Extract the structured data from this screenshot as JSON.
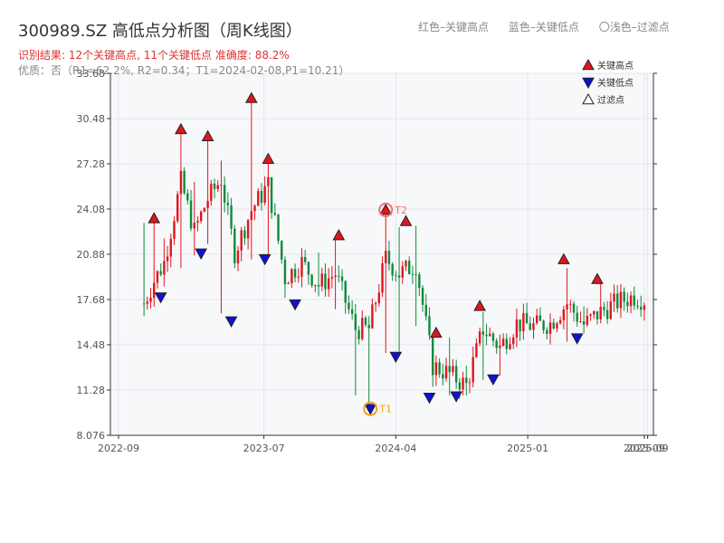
{
  "header": {
    "title": "300989.SZ 高低点分析图（周K线图）",
    "result_line": "识别结果: 12个关键高点, 11个关键低点  准确度: 88.2%",
    "quality_line": "优质：否（R1=62.2%, R2=0.34；T1=2024-02-08,P1=10.21）",
    "color_legend": [
      "红色–关键高点",
      "蓝色–关键低点",
      "〇浅色–过滤点"
    ]
  },
  "colors": {
    "up": "#e0161e",
    "down": "#0f8a3c",
    "high_marker": "#e0161e",
    "low_marker": "#1010d8",
    "filtered_marker": "#ffffff",
    "t1": "#f0a020",
    "t2": "#f07070",
    "plot_bg": "#f7f8fa",
    "grid": "#e4e6ec"
  },
  "chart_data": {
    "type": "candlestick",
    "title": "300989.SZ 高低点分析图（周K线图）",
    "xlabel": "",
    "ylabel": "",
    "x_range": [
      "2022-08-15",
      "2025-09-20"
    ],
    "ylim": [
      8.076,
      33.68
    ],
    "y_ticks": [
      8.076,
      11.28,
      14.48,
      17.68,
      20.88,
      24.08,
      27.28,
      30.48,
      33.68
    ],
    "y_tick_labels": [
      "8.076",
      "11.28",
      "14.48",
      "17.68",
      "20.88",
      "24.08",
      "27.28",
      "30.48",
      "33.68"
    ],
    "x_ticks": [
      "2022-09-01",
      "2023-07-01",
      "2024-04-01",
      "2025-01-01",
      "2025-09-01",
      "2025-09-08"
    ],
    "x_tick_labels": [
      "2022-09",
      "2023-07",
      "2024-04",
      "2025-01",
      "2025-09",
      "2025-09"
    ],
    "grid": true,
    "legend_position": "top-right",
    "legend": [
      {
        "label": "关键高点",
        "marker": "triangle-up",
        "color": "#e0161e"
      },
      {
        "label": "关键低点",
        "marker": "triangle-down",
        "color": "#1010d8"
      },
      {
        "label": "过滤点",
        "marker": "triangle-up",
        "color": "#ffffff"
      }
    ],
    "key_points": [
      {
        "date": "2022-10-24",
        "price": 17.4,
        "low": 16.5,
        "high": 23.1
      },
      {
        "date": "2022-11-14",
        "price": 19.0,
        "low": 17.9,
        "high": 23.3
      },
      {
        "date": "2022-12-05",
        "price": 20.3,
        "low": 18.6,
        "high": 22.0
      },
      {
        "date": "2023-01-09",
        "price": 26.0,
        "low": 19.9,
        "high": 29.4
      },
      {
        "date": "2023-02-06",
        "price": 22.5,
        "low": 20.8,
        "high": 26.0
      },
      {
        "date": "2023-03-06",
        "price": 24.8,
        "low": 21.6,
        "high": 28.9
      },
      {
        "date": "2023-04-03",
        "price": 26.2,
        "low": 16.7,
        "high": 27.5
      },
      {
        "date": "2023-05-01",
        "price": 21.0,
        "low": 19.9,
        "high": 22.5
      },
      {
        "date": "2023-06-05",
        "price": 24.0,
        "low": 20.5,
        "high": 31.6
      },
      {
        "date": "2023-07-10",
        "price": 25.8,
        "low": 20.6,
        "high": 27.3
      },
      {
        "date": "2023-08-14",
        "price": 19.2,
        "low": 17.8,
        "high": 20.0
      },
      {
        "date": "2023-09-18",
        "price": 20.3,
        "low": 18.9,
        "high": 21.3
      },
      {
        "date": "2023-10-23",
        "price": 18.7,
        "low": 17.9,
        "high": 21.0
      },
      {
        "date": "2023-11-27",
        "price": 19.5,
        "low": 17.0,
        "high": 22.1
      },
      {
        "date": "2024-01-08",
        "price": 15.6,
        "low": 10.9,
        "high": 17.0
      },
      {
        "date": "2024-02-05",
        "price": 15.6,
        "low": 10.2,
        "high": 16.5
      },
      {
        "date": "2024-03-11",
        "price": 20.6,
        "low": 13.9,
        "high": 23.7
      },
      {
        "date": "2024-04-08",
        "price": 19.5,
        "low": 14.0,
        "high": 22.8
      },
      {
        "date": "2024-05-13",
        "price": 20.2,
        "low": 15.8,
        "high": 22.9
      },
      {
        "date": "2024-06-17",
        "price": 13.0,
        "low": 11.5,
        "high": 14.0
      },
      {
        "date": "2024-07-22",
        "price": 12.4,
        "low": 10.9,
        "high": 15.0
      },
      {
        "date": "2024-08-26",
        "price": 11.6,
        "low": 10.9,
        "high": 13.0
      },
      {
        "date": "2024-09-30",
        "price": 15.6,
        "low": 12.0,
        "high": 16.8
      },
      {
        "date": "2024-11-04",
        "price": 14.3,
        "low": 12.3,
        "high": 15.2
      },
      {
        "date": "2024-12-09",
        "price": 16.0,
        "low": 15.0,
        "high": 16.8
      },
      {
        "date": "2025-01-13",
        "price": 15.8,
        "low": 14.9,
        "high": 16.4
      },
      {
        "date": "2025-02-17",
        "price": 16.0,
        "low": 15.3,
        "high": 16.7
      },
      {
        "date": "2025-03-24",
        "price": 17.4,
        "low": 14.7,
        "high": 19.9
      },
      {
        "date": "2025-04-28",
        "price": 15.9,
        "low": 15.3,
        "high": 17.2
      },
      {
        "date": "2025-06-02",
        "price": 16.8,
        "low": 16.0,
        "high": 18.8
      },
      {
        "date": "2025-07-07",
        "price": 17.5,
        "low": 17.0,
        "high": 18.7
      },
      {
        "date": "2025-08-11",
        "price": 17.9,
        "low": 17.0,
        "high": 18.6
      },
      {
        "date": "2025-09-08",
        "price": 17.6,
        "low": 17.2,
        "high": 18.4
      }
    ],
    "high_points": [
      {
        "date": "2022-11-14",
        "price": 23.1
      },
      {
        "date": "2023-01-09",
        "price": 29.4
      },
      {
        "date": "2023-03-06",
        "price": 28.9
      },
      {
        "date": "2023-06-05",
        "price": 31.6
      },
      {
        "date": "2023-07-10",
        "price": 27.3
      },
      {
        "date": "2023-12-04",
        "price": 21.9
      },
      {
        "date": "2024-03-11",
        "price": 23.7
      },
      {
        "date": "2024-04-22",
        "price": 22.9
      },
      {
        "date": "2024-06-24",
        "price": 15.0
      },
      {
        "date": "2024-09-23",
        "price": 16.9
      },
      {
        "date": "2025-03-17",
        "price": 20.2
      },
      {
        "date": "2025-05-26",
        "price": 18.8
      }
    ],
    "low_points": [
      {
        "date": "2022-11-28",
        "price": 18.1
      },
      {
        "date": "2023-02-20",
        "price": 21.2
      },
      {
        "date": "2023-04-24",
        "price": 16.4
      },
      {
        "date": "2023-07-03",
        "price": 20.8
      },
      {
        "date": "2023-09-04",
        "price": 17.6
      },
      {
        "date": "2024-02-08",
        "price": 10.21
      },
      {
        "date": "2024-04-01",
        "price": 13.9
      },
      {
        "date": "2024-06-10",
        "price": 11.0
      },
      {
        "date": "2024-08-05",
        "price": 11.1
      },
      {
        "date": "2024-10-21",
        "price": 12.3
      },
      {
        "date": "2025-04-14",
        "price": 15.2
      }
    ],
    "annotations": [
      {
        "label": "T1",
        "date": "2024-02-08",
        "price": 10.21,
        "kind": "low"
      },
      {
        "label": "T2",
        "date": "2024-03-11",
        "price": 23.7,
        "kind": "high"
      }
    ]
  }
}
